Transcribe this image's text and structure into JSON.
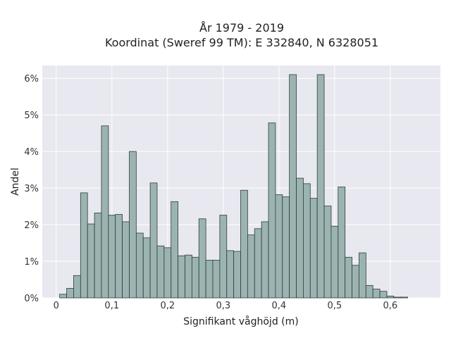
{
  "chart_data": {
    "type": "bar",
    "title": "År 1979 - 2019",
    "subtitle": "Koordinat (Sweref 99 TM): E 332840, N 6328051",
    "xlabel": "Signifikant våghöjd (m)",
    "ylabel": "Andel",
    "xlim": [
      -0.025,
      0.69
    ],
    "ylim": [
      0,
      0.0635
    ],
    "bin_width": 0.0125,
    "x_ticks": [
      {
        "value": 0,
        "label": "0"
      },
      {
        "value": 0.1,
        "label": "0,1"
      },
      {
        "value": 0.2,
        "label": "0,2"
      },
      {
        "value": 0.3,
        "label": "0,3"
      },
      {
        "value": 0.4,
        "label": "0,4"
      },
      {
        "value": 0.5,
        "label": "0,5"
      },
      {
        "value": 0.6,
        "label": "0,6"
      }
    ],
    "y_ticks": [
      {
        "value": 0,
        "label": "0%"
      },
      {
        "value": 0.01,
        "label": "1%"
      },
      {
        "value": 0.02,
        "label": "2%"
      },
      {
        "value": 0.03,
        "label": "3%"
      },
      {
        "value": 0.04,
        "label": "4%"
      },
      {
        "value": 0.05,
        "label": "5%"
      },
      {
        "value": 0.06,
        "label": "6%"
      }
    ],
    "grid": true,
    "x": [
      0.0125,
      0.025,
      0.0375,
      0.05,
      0.0625,
      0.075,
      0.0875,
      0.1,
      0.1125,
      0.125,
      0.1375,
      0.15,
      0.1625,
      0.175,
      0.1875,
      0.2,
      0.2125,
      0.225,
      0.2375,
      0.25,
      0.2625,
      0.275,
      0.2875,
      0.3,
      0.3125,
      0.325,
      0.3375,
      0.35,
      0.3625,
      0.375,
      0.3875,
      0.4,
      0.4125,
      0.425,
      0.4375,
      0.45,
      0.4625,
      0.475,
      0.4875,
      0.5,
      0.5125,
      0.525,
      0.5375,
      0.55,
      0.5625,
      0.575,
      0.5875,
      0.6,
      0.6125,
      0.625,
      0.6375,
      0.65
    ],
    "values": [
      0.001,
      0.0026,
      0.0061,
      0.0287,
      0.0202,
      0.0232,
      0.047,
      0.0226,
      0.0228,
      0.0208,
      0.04,
      0.0177,
      0.0164,
      0.0314,
      0.0142,
      0.0137,
      0.0263,
      0.0115,
      0.0117,
      0.0111,
      0.0216,
      0.0103,
      0.0103,
      0.0226,
      0.0129,
      0.0127,
      0.0294,
      0.0172,
      0.0189,
      0.0208,
      0.0478,
      0.0282,
      0.0276,
      0.061,
      0.0327,
      0.0312,
      0.0272,
      0.061,
      0.0251,
      0.0196,
      0.0303,
      0.0111,
      0.0089,
      0.0123,
      0.0034,
      0.0024,
      0.0018,
      0.0005,
      0.0002,
      0.0002,
      0.0,
      0.0
    ],
    "colors": {
      "bar_fill": "#9bb4b1",
      "bar_stroke": "#2f3b39",
      "plot_bg": "#e8e8f0",
      "grid": "#ffffff"
    }
  }
}
